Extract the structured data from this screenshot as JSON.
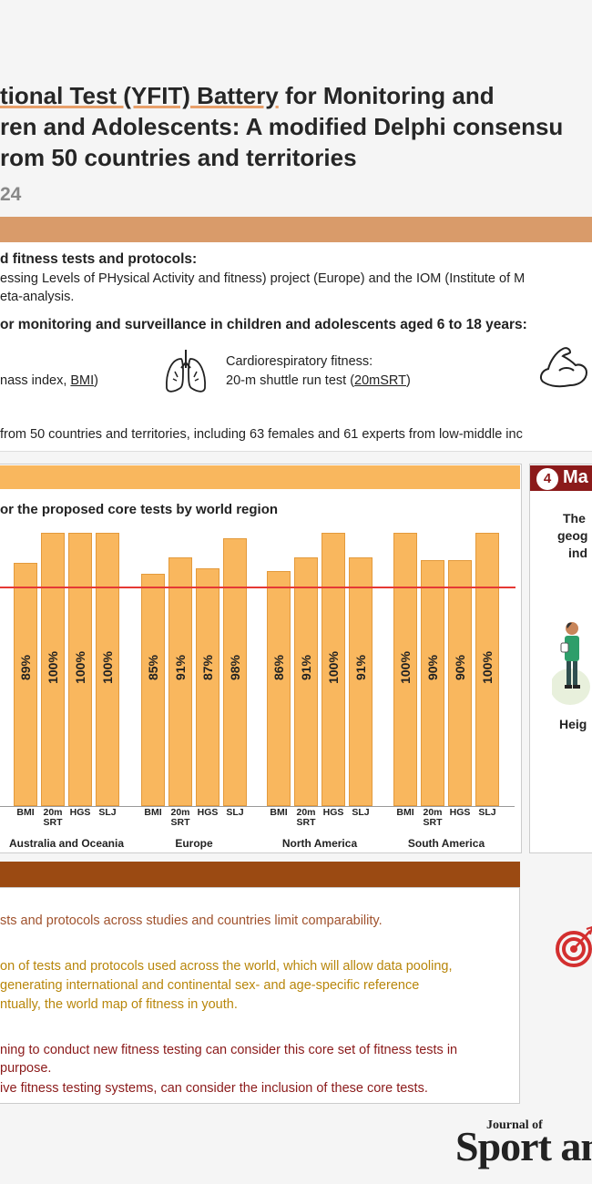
{
  "header": {
    "title_line1_a": "tional Test (YFIT) Battery",
    "title_line1_b": " for Monitoring and",
    "title_line2": "ren and Adolescents: A modified Delphi consensu",
    "title_line3": "rom 50 countries and territories",
    "year": "24"
  },
  "methods": {
    "heading": "d fitness tests and protocols:",
    "line1": "essing Levels of PHysical Activity and fitness) project (Europe) and the IOM (Institute of M",
    "line2": "eta-analysis.",
    "heading2": "or monitoring and surveillance in children and adolescents aged 6 to 18 years:",
    "bmi_a": "nass index, ",
    "bmi_b": "BMI",
    "bmi_c": ")",
    "crf_label": "Cardiorespiratory fitness:",
    "crf_a": "20-m shuttle run test (",
    "crf_b": "20mSRT",
    "crf_c": ")",
    "participants": "from 50 countries and territories, including 63 females and 61 experts from low-middle inc"
  },
  "chart_section": {
    "subtitle": "or the proposed core tests by world region"
  },
  "side_panel": {
    "number": "4",
    "title": "Ma",
    "line1": "The",
    "line2": "geog",
    "line3": "ind",
    "line4": "Heig"
  },
  "conclusions": {
    "c1": "sts and protocols across studies and countries limit comparability.",
    "c2": "on of tests and protocols used across the world, which will allow data pooling,",
    "c3": "generating international and continental sex- and age-specific reference",
    "c4": "ntually, the world map of fitness in youth.",
    "c5": "ning to conduct new fitness testing can consider this core set of fitness tests in",
    "c6": " purpose.",
    "c7": "ive fitness testing systems, can consider the inclusion of these core tests."
  },
  "journal": {
    "small": "Journal of",
    "big": "Sport an"
  },
  "chart_data": {
    "type": "bar",
    "ylim": [
      0,
      100
    ],
    "threshold": 80,
    "categories": [
      "BMI",
      "20m SRT",
      "HGS",
      "SLJ"
    ],
    "groups": [
      {
        "region": "Australia and Oceania",
        "values": [
          89,
          100,
          100,
          100
        ],
        "labels": [
          "89%",
          "100%",
          "100%",
          "100%"
        ]
      },
      {
        "region": "Europe",
        "values": [
          85,
          91,
          87,
          98
        ],
        "labels": [
          "85%",
          "91%",
          "87%",
          "98%"
        ]
      },
      {
        "region": "North America",
        "values": [
          86,
          91,
          100,
          91
        ],
        "labels": [
          "86%",
          "91%",
          "100%",
          "91%"
        ]
      },
      {
        "region": "South America",
        "values": [
          100,
          90,
          90,
          100
        ],
        "labels": [
          "100%",
          "90%",
          "90%",
          "100%"
        ]
      }
    ]
  }
}
